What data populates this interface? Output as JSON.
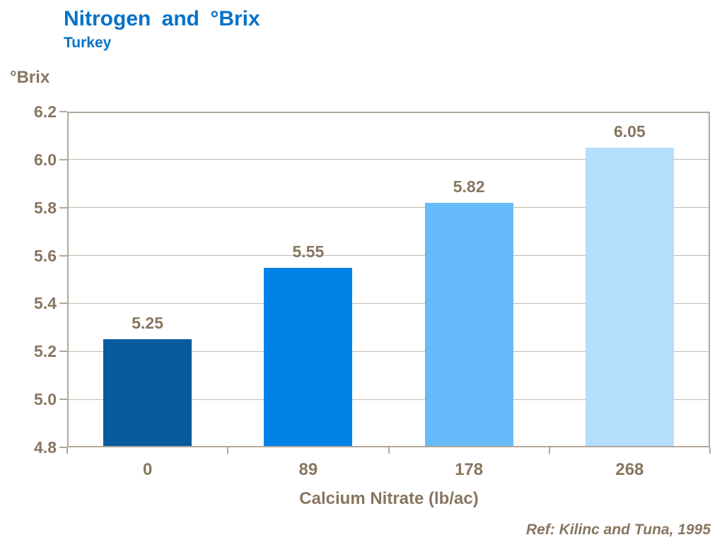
{
  "header": {
    "title": "Nitrogen and °Brix",
    "subtitle": "Turkey"
  },
  "footer": {
    "reference": "Ref: Kilinc and Tuna, 1995"
  },
  "chart_data": {
    "type": "bar",
    "title": "Nitrogen and °Brix",
    "subtitle": "Turkey",
    "categories": [
      "0",
      "89",
      "178",
      "268"
    ],
    "values": [
      5.25,
      5.55,
      5.82,
      6.05
    ],
    "bar_labels": [
      "5.25",
      "5.55",
      "5.82",
      "6.05"
    ],
    "xlabel": "Calcium Nitrate (lb/ac)",
    "ylabel": "°Brix",
    "ylim": [
      4.8,
      6.2
    ],
    "ytick_step": 0.2,
    "yticks": [
      "6.2",
      "6.0",
      "5.8",
      "5.6",
      "5.4",
      "5.2",
      "5.0",
      "4.8"
    ],
    "grid": true,
    "legend": "none",
    "bar_colors": [
      "#075B9E",
      "#0082E6",
      "#66BBFA",
      "#B5DDFC"
    ],
    "colors": {
      "background": "#FFFFFF",
      "title": "#0072C9",
      "text": "#877660",
      "axis_border": "#B2A79A",
      "gridline": "#C4BAAD"
    }
  }
}
